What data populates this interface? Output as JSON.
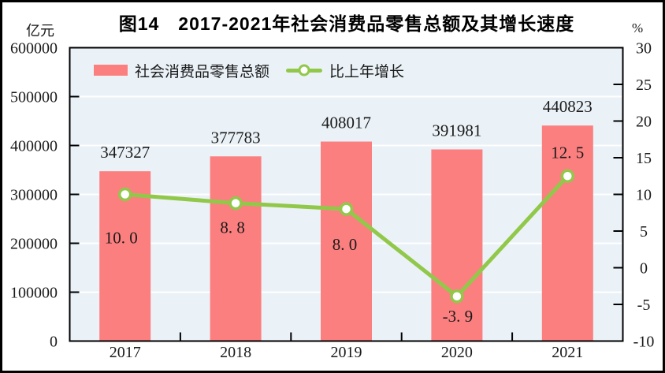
{
  "figure": {
    "title": "图14　2017-2021年社会消费品零售总额及其增长速度",
    "left_unit": "亿元",
    "right_unit": "%"
  },
  "legend": {
    "bar_label": "社会消费品零售总额",
    "line_label": "比上年增长"
  },
  "chart_data": {
    "type": "combo-bar-line",
    "title": "图14　2017-2021年社会消费品零售总额及其增长速度",
    "categories": [
      "2017",
      "2018",
      "2019",
      "2020",
      "2021"
    ],
    "series": [
      {
        "name": "社会消费品零售总额",
        "type": "bar",
        "axis": "left",
        "unit": "亿元",
        "values": [
          347327,
          377783,
          408017,
          391981,
          440823
        ],
        "data_labels": [
          "347327",
          "377783",
          "408017",
          "391981",
          "440823"
        ],
        "color": "#fc7f7f"
      },
      {
        "name": "比上年增长",
        "type": "line",
        "axis": "right",
        "unit": "%",
        "values": [
          10.0,
          8.8,
          8.0,
          -3.9,
          12.5
        ],
        "data_labels": [
          "10. 0",
          "8. 8",
          "8. 0",
          "-3. 9",
          "12. 5"
        ],
        "color": "#92c84a",
        "marker": "circle-white-fill"
      }
    ],
    "left_axis": {
      "label": "亿元",
      "min": 0,
      "max": 600000,
      "tick_step": 100000,
      "tick_labels": [
        "0",
        "100000",
        "200000",
        "300000",
        "400000",
        "500000",
        "600000"
      ]
    },
    "right_axis": {
      "label": "%",
      "min": -10,
      "max": 30,
      "tick_step": 5,
      "tick_labels": [
        "-10",
        "-5",
        "0",
        "5",
        "10",
        "15",
        "20",
        "25",
        "30"
      ]
    },
    "grid": {
      "horizontal": true,
      "color": "#ffffff",
      "aligned_to": "left-axis-ticks"
    },
    "legend_position": "top-left-inside",
    "plot_bg": "#eaf2f8",
    "frame_color": "#000000",
    "text_color": "#1a1a1a"
  }
}
